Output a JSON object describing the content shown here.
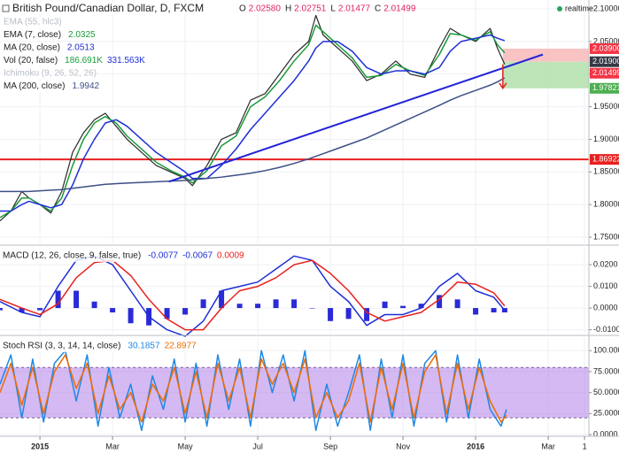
{
  "x_axis": {
    "xlim": [
      -1.1,
      15.12
    ],
    "xticks": [
      {
        "value": 0,
        "label": "2015"
      },
      {
        "value": 2,
        "label": "Mar"
      },
      {
        "value": 4,
        "label": "May"
      },
      {
        "value": 6,
        "label": "Jul"
      },
      {
        "value": 8,
        "label": "Sep"
      },
      {
        "value": 10,
        "label": "Nov"
      },
      {
        "value": 12,
        "label": "2016"
      },
      {
        "value": 14,
        "label": "Mar"
      },
      {
        "value": 15,
        "label": "1"
      }
    ],
    "grid": true
  },
  "status": "realtime",
  "chart_data": [
    {
      "type": "line",
      "title": "British Pound/Canadian Dollar, D, FXCM",
      "ohlc": {
        "names": [
          "O",
          "H",
          "L",
          "C"
        ],
        "values": [
          2.0258,
          2.02751,
          2.01477,
          2.01499
        ],
        "value_labels": [
          "2.02580",
          "2.02751",
          "2.01477",
          "2.01499"
        ],
        "color": "#e0245e"
      },
      "indicators": [
        {
          "name": "EMA (55, hlc3)",
          "faded": true
        },
        {
          "name": "Vol (20, false)",
          "values": [
            186691,
            331563
          ],
          "value_labels": [
            "186.691K",
            "331.563K"
          ],
          "colors": [
            "#1b9a3a",
            "#1e2fd6"
          ]
        },
        {
          "name": "Ichimoku (9, 26, 52, 26)",
          "faded": true
        }
      ],
      "x": [
        -1.1,
        -0.8,
        -0.5,
        -0.3,
        0,
        0.3,
        0.6,
        0.9,
        1.2,
        1.5,
        1.8,
        2.1,
        2.4,
        2.8,
        3.2,
        3.6,
        4.0,
        4.2,
        4.6,
        5.0,
        5.4,
        5.8,
        6.2,
        6.6,
        7.0,
        7.4,
        7.6,
        7.8,
        8.2,
        8.6,
        9.0,
        9.4,
        9.8,
        10.2,
        10.6,
        11.0,
        11.3,
        11.6,
        12.0,
        12.4,
        12.6,
        12.8
      ],
      "series": [
        {
          "color": "#2b2b2b",
          "values": [
            1.775,
            1.79,
            1.82,
            1.81,
            1.8,
            1.787,
            1.82,
            1.88,
            1.91,
            1.93,
            1.94,
            1.92,
            1.9,
            1.88,
            1.86,
            1.85,
            1.84,
            1.829,
            1.86,
            1.9,
            1.91,
            1.96,
            1.97,
            2.0,
            2.03,
            2.05,
            2.09,
            2.06,
            2.04,
            2.02,
            1.99,
            2.0,
            2.02,
            2.0,
            1.995,
            2.04,
            2.07,
            2.06,
            2.05,
            2.07,
            2.04,
            2.015
          ]
        },
        {
          "name": "EMA (7, close)",
          "color": "#1b9a3a",
          "values": [
            1.78,
            1.79,
            1.81,
            1.81,
            1.8,
            1.79,
            1.81,
            1.86,
            1.9,
            1.925,
            1.935,
            1.925,
            1.905,
            1.885,
            1.865,
            1.852,
            1.842,
            1.833,
            1.852,
            1.89,
            1.905,
            1.95,
            1.965,
            1.99,
            2.02,
            2.045,
            2.075,
            2.065,
            2.045,
            2.025,
            1.995,
            1.998,
            2.015,
            2.005,
            1.998,
            2.03,
            2.062,
            2.06,
            2.052,
            2.065,
            2.045,
            2.0325
          ]
        },
        {
          "name": "MA (20, close)",
          "color": "#1e2fd6",
          "values": [
            1.79,
            1.79,
            1.8,
            1.805,
            1.8,
            1.795,
            1.8,
            1.83,
            1.87,
            1.9,
            1.925,
            1.93,
            1.92,
            1.9,
            1.88,
            1.865,
            1.85,
            1.84,
            1.84,
            1.86,
            1.885,
            1.915,
            1.94,
            1.965,
            1.99,
            2.02,
            2.04,
            2.05,
            2.05,
            2.035,
            2.01,
            2.0,
            2.005,
            2.005,
            2.0,
            2.01,
            2.035,
            2.05,
            2.055,
            2.06,
            2.055,
            2.0513
          ]
        },
        {
          "name": "MA (200, close)",
          "color": "#3c4f86",
          "values": [
            1.82,
            1.82,
            1.82,
            1.82,
            1.821,
            1.822,
            1.823,
            1.825,
            1.827,
            1.829,
            1.831,
            1.832,
            1.833,
            1.834,
            1.835,
            1.836,
            1.837,
            1.838,
            1.84,
            1.842,
            1.845,
            1.848,
            1.852,
            1.857,
            1.863,
            1.87,
            1.874,
            1.878,
            1.886,
            1.894,
            1.902,
            1.912,
            1.922,
            1.932,
            1.942,
            1.952,
            1.96,
            1.967,
            1.975,
            1.983,
            1.988,
            1.9942
          ]
        }
      ],
      "trendline": {
        "x": [
          3.55,
          13.85
        ],
        "y": [
          1.835,
          2.03
        ],
        "color": "#2424d8"
      },
      "hline": {
        "value": 1.86922,
        "label": "1.86922",
        "color": "#e8201e"
      },
      "position": {
        "x_start": 12.75,
        "stop": {
          "value": 2.039,
          "label": "2.03900",
          "color": "#f23645"
        },
        "entry": {
          "value": 2.019,
          "label": "2.01900",
          "color": "#363a45"
        },
        "target": {
          "value": 1.97821,
          "label": "1.97821",
          "color": "#4caf50"
        }
      },
      "last_price": {
        "value": 2.01499,
        "label": "2.01499",
        "color": "#f23645"
      },
      "ylim": [
        1.7405,
        2.1136
      ],
      "yticks": [
        {
          "value": 1.75,
          "label": "1.75000"
        },
        {
          "value": 1.8,
          "label": "1.80000"
        },
        {
          "value": 1.85,
          "label": "1.85000"
        },
        {
          "value": 1.9,
          "label": "1.90000"
        },
        {
          "value": 1.95,
          "label": "1.95000"
        },
        {
          "value": 2.0,
          "label": "2.00000"
        },
        {
          "value": 2.05,
          "label": "2.05000"
        },
        {
          "value": 2.1,
          "label": "2.10000"
        }
      ],
      "grid": true
    },
    {
      "type": "line",
      "title": "MACD (12, 26, close, 9, false, true)",
      "legend_values": [
        -0.0077,
        -0.0067,
        0.0009
      ],
      "legend_colors": [
        "#1e2fd6",
        "#1e2fd6",
        "#e8201e"
      ],
      "x": [
        -1.1,
        -0.5,
        0,
        0.5,
        1,
        1.5,
        2,
        2.5,
        3,
        3.5,
        4,
        4.5,
        5,
        5.5,
        6,
        6.5,
        7,
        7.5,
        8,
        8.5,
        9,
        9.5,
        10,
        10.5,
        11,
        11.5,
        12,
        12.5,
        12.8
      ],
      "series": [
        {
          "type": "bar",
          "color": "#2a2ad8",
          "values": [
            -0.001,
            -0.002,
            -0.001,
            0.008,
            0.008,
            0.003,
            -0.002,
            -0.007,
            -0.008,
            -0.005,
            -0.003,
            0.004,
            0.008,
            0.002,
            0.002,
            0.004,
            0.004,
            0,
            -0.006,
            -0.005,
            -0.006,
            0.003,
            0.001,
            0.002,
            0.006,
            0.004,
            -0.003,
            -0.002,
            -0.002
          ]
        },
        {
          "color": "#1e2fd6",
          "values": [
            0.003,
            -0.002,
            -0.004,
            0.01,
            0.022,
            0.024,
            0.02,
            0.008,
            -0.004,
            -0.01,
            -0.013,
            -0.006,
            0.008,
            0.01,
            0.012,
            0.018,
            0.024,
            0.022,
            0.01,
            0.003,
            -0.008,
            -0.003,
            -0.003,
            0,
            0.01,
            0.016,
            0.008,
            0.005,
            -0.001
          ]
        },
        {
          "color": "#e8201e",
          "values": [
            0.004,
            0,
            -0.003,
            0.002,
            0.014,
            0.021,
            0.022,
            0.015,
            0.004,
            -0.005,
            -0.01,
            -0.01,
            0,
            0.008,
            0.01,
            0.014,
            0.02,
            0.022,
            0.016,
            0.008,
            -0.002,
            -0.006,
            -0.004,
            -0.002,
            0.004,
            0.012,
            0.011,
            0.007,
            0.001
          ]
        }
      ],
      "ylim": [
        -0.0118,
        0.0278
      ],
      "yticks": [
        {
          "value": -0.01,
          "label": "-0.0100"
        },
        {
          "value": 0,
          "label": "0.0000"
        },
        {
          "value": 0.01,
          "label": "0.0100"
        },
        {
          "value": 0.02,
          "label": "0.0200"
        }
      ],
      "grid": true
    },
    {
      "type": "line",
      "title": "Stoch RSI (3, 3, 14, 14, close)",
      "legend_values": [
        30.1857,
        22.8977
      ],
      "legend_colors": [
        "#1e88e5",
        "#ef6c00"
      ],
      "band": {
        "range": [
          20,
          80
        ],
        "color": "#b37fe8"
      },
      "x": [
        -1.1,
        -0.8,
        -0.5,
        -0.2,
        0.1,
        0.4,
        0.7,
        1.0,
        1.3,
        1.6,
        1.9,
        2.2,
        2.5,
        2.8,
        3.1,
        3.4,
        3.7,
        4.0,
        4.3,
        4.6,
        4.9,
        5.2,
        5.5,
        5.8,
        6.1,
        6.4,
        6.7,
        7.0,
        7.3,
        7.6,
        7.9,
        8.2,
        8.5,
        8.8,
        9.1,
        9.4,
        9.7,
        10.0,
        10.3,
        10.6,
        10.9,
        11.2,
        11.5,
        11.8,
        12.1,
        12.4,
        12.7,
        12.85
      ],
      "series": [
        {
          "color": "#1e88e5",
          "values": [
            60,
            95,
            20,
            90,
            15,
            85,
            100,
            40,
            95,
            10,
            80,
            20,
            60,
            5,
            70,
            30,
            90,
            15,
            85,
            10,
            95,
            30,
            90,
            10,
            100,
            50,
            95,
            40,
            100,
            5,
            60,
            10,
            50,
            95,
            5,
            90,
            20,
            95,
            10,
            85,
            100,
            15,
            95,
            20,
            90,
            30,
            10,
            30
          ]
        },
        {
          "color": "#ef6c00",
          "values": [
            50,
            85,
            35,
            80,
            25,
            75,
            95,
            55,
            85,
            25,
            70,
            30,
            50,
            15,
            60,
            40,
            80,
            25,
            75,
            20,
            85,
            40,
            80,
            20,
            90,
            60,
            85,
            50,
            90,
            20,
            50,
            20,
            40,
            85,
            15,
            80,
            30,
            85,
            20,
            75,
            95,
            25,
            85,
            30,
            80,
            40,
            15,
            23
          ]
        }
      ],
      "ylim": [
        -1,
        115
      ],
      "yticks": [
        {
          "value": 0,
          "label": "0.0000"
        },
        {
          "value": 25,
          "label": "25.0000"
        },
        {
          "value": 50,
          "label": "50.0000"
        },
        {
          "value": 75,
          "label": "75.0000"
        },
        {
          "value": 100,
          "label": "100.0000"
        }
      ],
      "grid": true
    }
  ]
}
